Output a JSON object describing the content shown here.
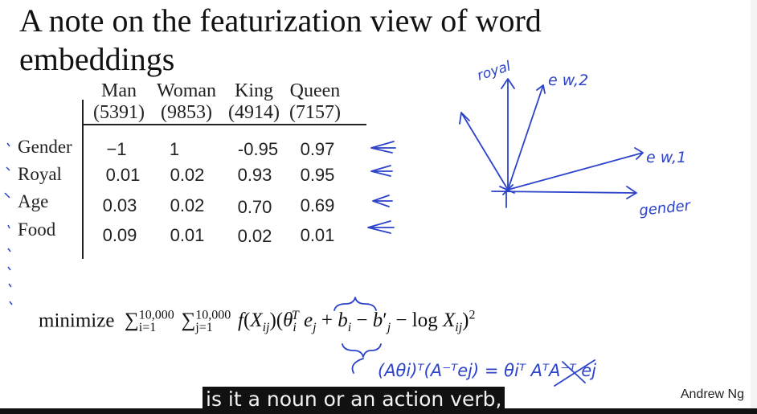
{
  "slide": {
    "title": "A note on the featurization view of word embeddings",
    "columns": [
      {
        "word": "Man",
        "index": "(5391)"
      },
      {
        "word": "Woman",
        "index": "(9853)"
      },
      {
        "word": "King",
        "index": "(4914)"
      },
      {
        "word": "Queen",
        "index": "(7157)"
      }
    ],
    "rows": [
      {
        "feature": "Gender",
        "values": [
          "−1",
          "1",
          "-0.95",
          "0.97"
        ]
      },
      {
        "feature": "Royal",
        "values": [
          "0.01",
          "0.02",
          "0.93",
          "0.95"
        ]
      },
      {
        "feature": "Age",
        "values": [
          "0.03",
          "0.02",
          "0.70",
          "0.69"
        ]
      },
      {
        "feature": "Food",
        "values": [
          "0.09",
          "0.01",
          "0.02",
          "0.01"
        ]
      }
    ],
    "formula_prefix": "minimize",
    "author": "Andrew Ng",
    "handwriting": {
      "royal": "royal",
      "e_w2": "e w,2",
      "e_w1": "e w,1",
      "gender": "gender",
      "proof": "(Aθi)ᵀ(A⁻ᵀej) = θiᵀ AᵀA⁻ᵀ ej"
    }
  },
  "player": {
    "subtitle": "is it a noun or an action verb,"
  },
  "colors": {
    "ink": "#2d43c9",
    "subtitle_bg": "#111111",
    "subtitle_fg": "#f2f2f2"
  }
}
